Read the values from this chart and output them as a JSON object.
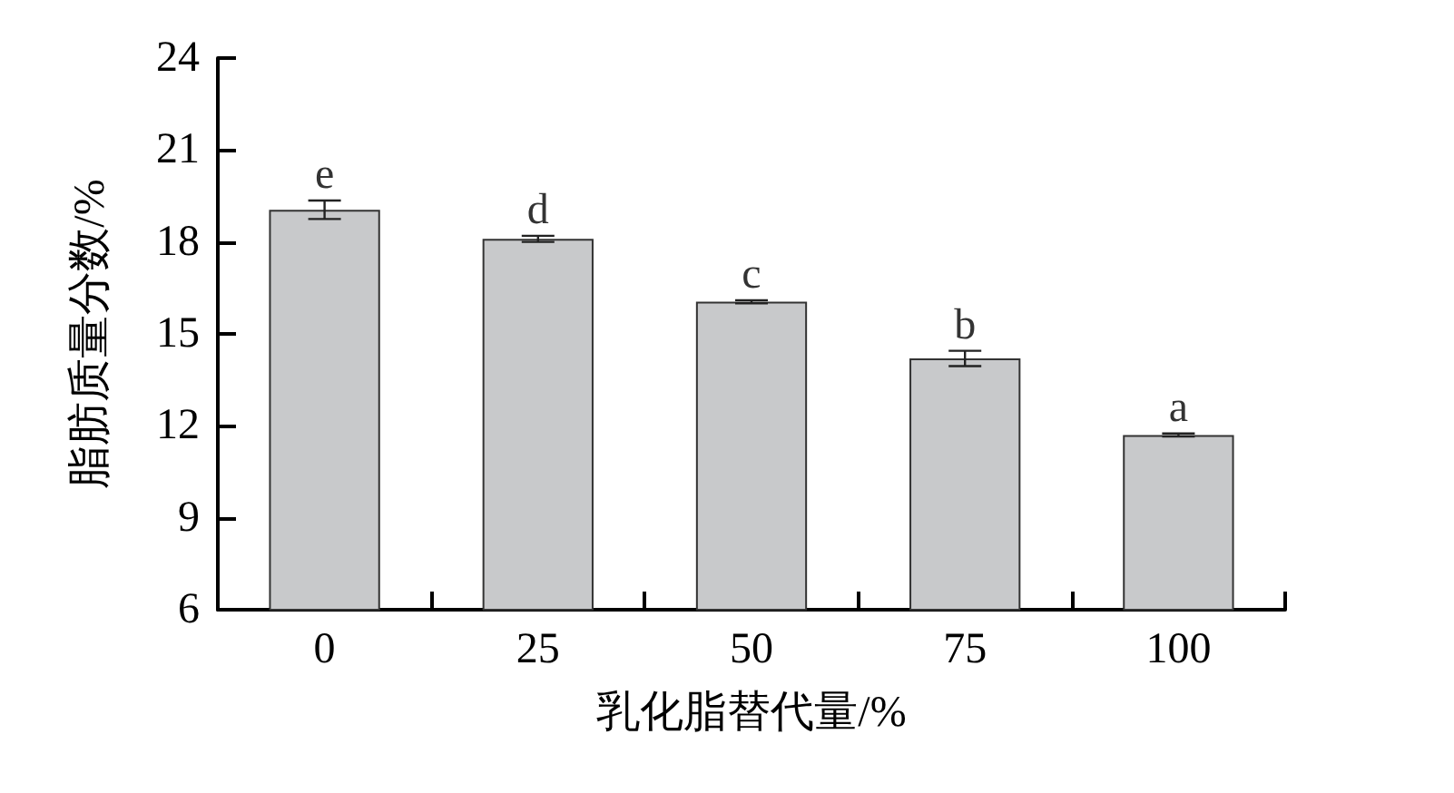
{
  "chart_data": {
    "type": "bar",
    "xlabel": "乳化脂替代量/%",
    "ylabel": "脂肪质量分数/%",
    "categories": [
      "0",
      "25",
      "50",
      "75",
      "100"
    ],
    "values": [
      19.05,
      18.1,
      16.05,
      14.2,
      11.7
    ],
    "errors": [
      0.3,
      0.1,
      0.05,
      0.25,
      0.05
    ],
    "color": "#c8c9cb",
    "ylim": [
      6,
      24
    ],
    "yticks": [
      6,
      9,
      12,
      15,
      18,
      21,
      24
    ],
    "grid": false,
    "annotations": [
      {
        "text": "e",
        "x": "0",
        "y": 19.35
      },
      {
        "text": "d",
        "x": "25",
        "y": 18.2
      },
      {
        "text": "c",
        "x": "50",
        "y": 16.1
      },
      {
        "text": "b",
        "x": "75",
        "y": 14.45
      },
      {
        "text": "a",
        "x": "100",
        "y": 11.75
      }
    ]
  }
}
